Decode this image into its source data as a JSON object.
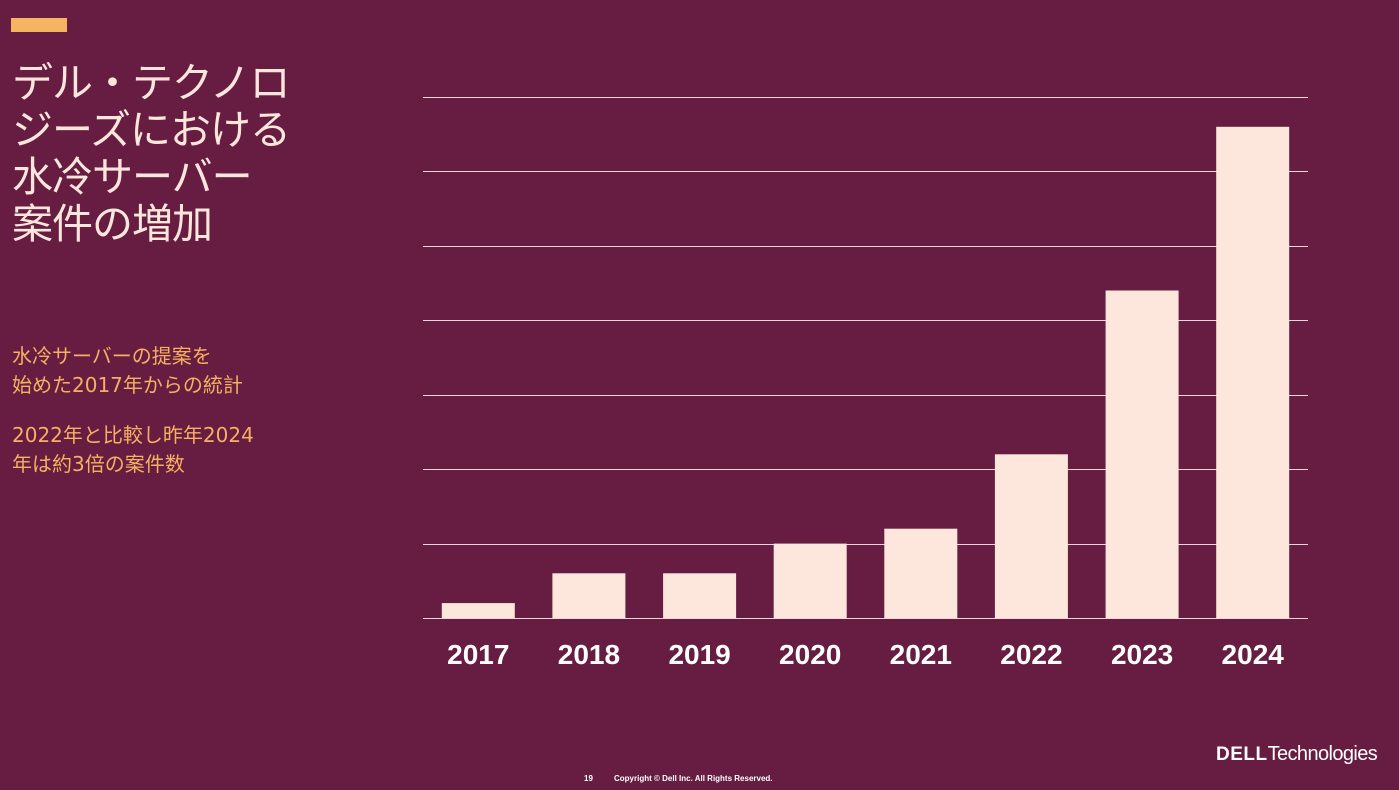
{
  "slide": {
    "title_lines": [
      "デル・テクノロ",
      "ジーズにおける",
      "水冷サーバー",
      "案件の増加"
    ],
    "note1_lines": [
      "水冷サーバーの提案を",
      "始めた2017年からの統計"
    ],
    "note2_lines": [
      "2022年と比較し昨年2024",
      "年は約3倍の案件数"
    ],
    "page_number": "19",
    "copyright": "Copyright © Dell Inc. All Rights Reserved.",
    "logo_dell": "DELL",
    "logo_tech": "Technologies"
  },
  "colors": {
    "background": "#661d41",
    "bar": "#fde6dc",
    "accent": "#f5b461",
    "note_text": "#f6b061"
  },
  "chart_data": {
    "type": "bar",
    "title": "",
    "xlabel": "",
    "ylabel": "",
    "categories": [
      "2017",
      "2018",
      "2019",
      "2020",
      "2021",
      "2022",
      "2023",
      "2024"
    ],
    "values": [
      0.2,
      0.6,
      0.6,
      1.0,
      1.2,
      2.2,
      4.4,
      6.6
    ],
    "ylim": [
      0,
      7
    ],
    "grid": true,
    "y_tick_labels_shown": false
  }
}
